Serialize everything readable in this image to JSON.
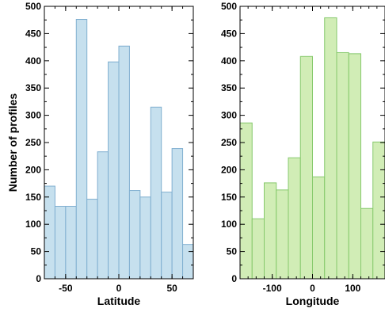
{
  "chart_data": [
    {
      "type": "bar",
      "xlabel": "Latitude",
      "ylabel": "Number of profiles",
      "xlim": [
        -70,
        70
      ],
      "ylim": [
        0,
        500
      ],
      "bin_edges": [
        -70,
        -60,
        -50,
        -40,
        -30,
        -20,
        -10,
        0,
        10,
        20,
        30,
        40,
        50,
        60,
        70
      ],
      "values": [
        170,
        133,
        133,
        476,
        146,
        233,
        398,
        427,
        162,
        150,
        315,
        159,
        239,
        63
      ],
      "xticks": [
        -50,
        0,
        50
      ],
      "yticks": [
        0,
        50,
        100,
        150,
        200,
        250,
        300,
        350,
        400,
        450,
        500
      ],
      "colors": {
        "fill": "#c6e0ee",
        "edge": "#80afd0"
      }
    },
    {
      "type": "bar",
      "xlabel": "Longitude",
      "ylabel": "",
      "xlim": [
        -180,
        180
      ],
      "ylim": [
        0,
        500
      ],
      "bin_edges": [
        -180,
        -150,
        -120,
        -90,
        -60,
        -30,
        0,
        30,
        60,
        90,
        120,
        150,
        180
      ],
      "values": [
        286,
        110,
        176,
        163,
        222,
        408,
        187,
        479,
        415,
        413,
        129,
        251
      ],
      "xticks": [
        -100,
        0,
        100
      ],
      "yticks": [
        0,
        50,
        100,
        150,
        200,
        250,
        300,
        350,
        400,
        450,
        500
      ],
      "colors": {
        "fill": "#d1edb6",
        "edge": "#86c96c"
      }
    }
  ]
}
